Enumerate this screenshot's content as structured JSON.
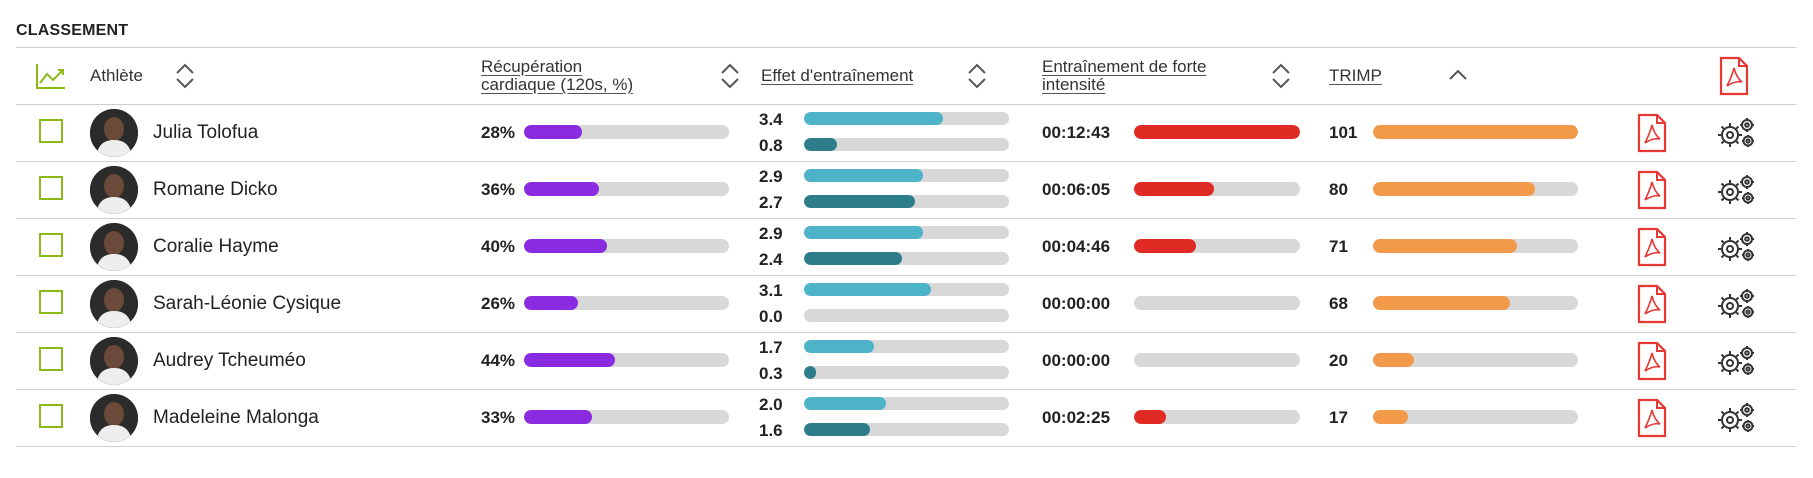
{
  "section_title": "CLASSEMENT",
  "header": {
    "athlete": "Athlète",
    "recovery_line1": "Récupération",
    "recovery_line2": "cardiaque (120s, %)",
    "effect": "Effet d'entraînement",
    "intense_line1": "Entraînement de forte",
    "intense_line2": "intensité",
    "trimp": "TRIMP"
  },
  "colors": {
    "recovery": "#8a2be2",
    "effect_aerobic": "#4cb3c9",
    "effect_anaerobic": "#2e7d8a",
    "intensity": "#e02a24",
    "trimp": "#f29a4a",
    "checkbox": "#8cb818",
    "pdf": "#e53935"
  },
  "athletes": [
    {
      "name": "Julia Tolofua",
      "recovery": "28%",
      "recovery_pct": 28,
      "effect1": "3.4",
      "effect1_frac": 0.68,
      "effect2": "0.8",
      "effect2_frac": 0.16,
      "intense": "00:12:43",
      "intense_frac": 1.0,
      "trimp": "101",
      "trimp_frac": 1.0
    },
    {
      "name": "Romane Dicko",
      "recovery": "36%",
      "recovery_pct": 36,
      "effect1": "2.9",
      "effect1_frac": 0.58,
      "effect2": "2.7",
      "effect2_frac": 0.54,
      "intense": "00:06:05",
      "intense_frac": 0.48,
      "trimp": "80",
      "trimp_frac": 0.79
    },
    {
      "name": "Coralie Hayme",
      "recovery": "40%",
      "recovery_pct": 40,
      "effect1": "2.9",
      "effect1_frac": 0.58,
      "effect2": "2.4",
      "effect2_frac": 0.48,
      "intense": "00:04:46",
      "intense_frac": 0.375,
      "trimp": "71",
      "trimp_frac": 0.7
    },
    {
      "name": "Sarah-Léonie Cysique",
      "recovery": "26%",
      "recovery_pct": 26,
      "effect1": "3.1",
      "effect1_frac": 0.62,
      "effect2": "0.0",
      "effect2_frac": 0.0,
      "intense": "00:00:00",
      "intense_frac": 0.0,
      "trimp": "68",
      "trimp_frac": 0.67
    },
    {
      "name": "Audrey Tcheuméo",
      "recovery": "44%",
      "recovery_pct": 44,
      "effect1": "1.7",
      "effect1_frac": 0.34,
      "effect2": "0.3",
      "effect2_frac": 0.06,
      "intense": "00:00:00",
      "intense_frac": 0.0,
      "trimp": "20",
      "trimp_frac": 0.2
    },
    {
      "name": "Madeleine Malonga",
      "recovery": "33%",
      "recovery_pct": 33,
      "effect1": "2.0",
      "effect1_frac": 0.4,
      "effect2": "1.6",
      "effect2_frac": 0.32,
      "intense": "00:02:25",
      "intense_frac": 0.19,
      "trimp": "17",
      "trimp_frac": 0.17
    }
  ]
}
